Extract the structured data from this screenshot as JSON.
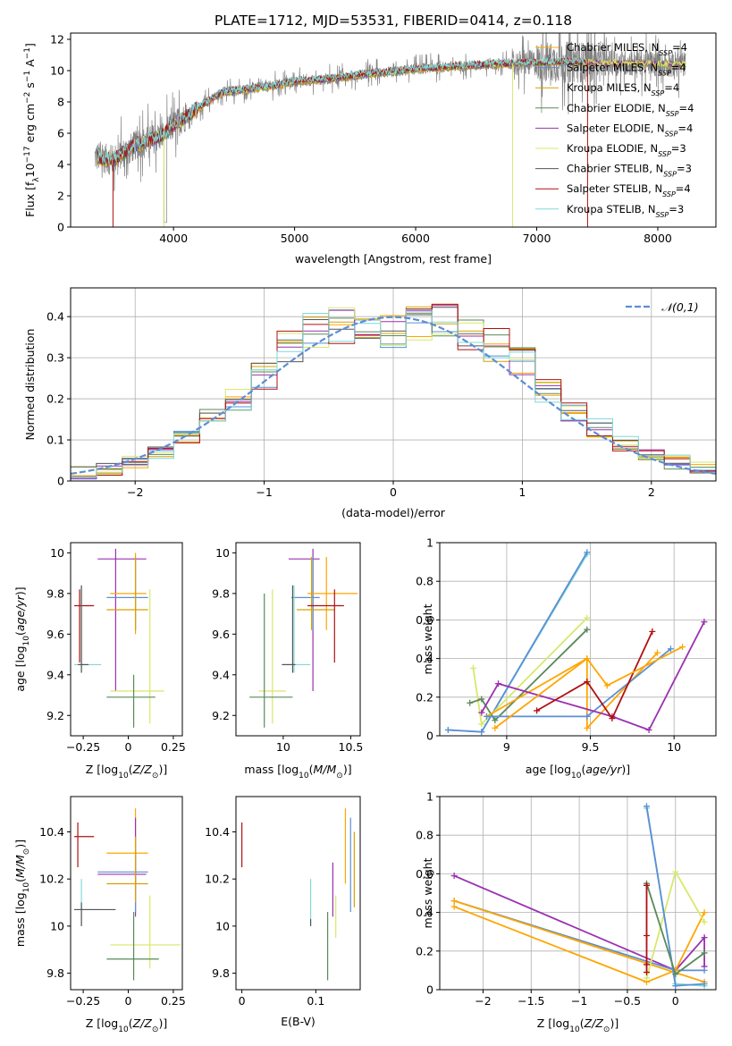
{
  "title": "PLATE=1712, MJD=53531, FIBERID=0414, z=0.118",
  "colors": {
    "chabrier_miles": "#ffa500",
    "salpeter_miles": "#5b8fd4",
    "kroupa_miles": "#d9a000",
    "chabrier_elodie": "#5a8a5a",
    "salpeter_elodie": "#9b30b0",
    "kroupa_elodie": "#d8e86a",
    "chabrier_stelib": "#555555",
    "salpeter_stelib": "#b01010",
    "kroupa_stelib": "#7fd8d8",
    "normal": "#5b8fd4"
  },
  "chart_data": [
    {
      "id": "spectrum",
      "type": "line",
      "xlabel": "wavelength [Angstrom, rest frame]",
      "ylabel": "Flux [f_λ 10^-17 erg cm^-2 s^-1 A^-1]",
      "xlim": [
        3150,
        8480
      ],
      "ylim": [
        0,
        12.4
      ],
      "xticks": [
        4000,
        5000,
        6000,
        7000,
        8000
      ],
      "yticks": [
        0,
        2,
        4,
        6,
        8,
        10,
        12
      ],
      "grid": false,
      "legend_position": "bottom-right",
      "legend": [
        {
          "key": "chabrier_miles",
          "label": "Chabrier MILES, N",
          "sub": "SSP",
          "tail": "=4"
        },
        {
          "key": "salpeter_miles",
          "label": "Salpeter MILES, N",
          "sub": "SSP",
          "tail": "=4"
        },
        {
          "key": "kroupa_miles",
          "label": "Kroupa MILES, N",
          "sub": "SSP",
          "tail": "=4"
        },
        {
          "key": "chabrier_elodie",
          "label": "Chabrier ELODIE, N",
          "sub": "SSP",
          "tail": "=4"
        },
        {
          "key": "salpeter_elodie",
          "label": "Salpeter ELODIE, N",
          "sub": "SSP",
          "tail": "=4"
        },
        {
          "key": "kroupa_elodie",
          "label": "Kroupa ELODIE, N",
          "sub": "SSP",
          "tail": "=3"
        },
        {
          "key": "chabrier_stelib",
          "label": "Chabrier STELIB, N",
          "sub": "SSP",
          "tail": "=3"
        },
        {
          "key": "salpeter_stelib",
          "label": "Salpeter STELIB, N",
          "sub": "SSP",
          "tail": "=4"
        },
        {
          "key": "kroupa_stelib",
          "label": "Kroupa STELIB, N",
          "sub": "SSP",
          "tail": "=3"
        }
      ],
      "data_color": "#808080",
      "continuum": {
        "x": [
          3350,
          3500,
          3700,
          3900,
          4000,
          4200,
          4400,
          4600,
          4800,
          5000,
          5200,
          5400,
          5600,
          5800,
          6000,
          6200,
          6400,
          6600,
          6800,
          7000,
          7200,
          7400,
          7600,
          7800,
          8000,
          8230
        ],
        "y": [
          4.5,
          4.3,
          5.3,
          5.8,
          6.5,
          7.6,
          8.6,
          8.8,
          9.0,
          9.3,
          9.4,
          9.6,
          9.8,
          9.9,
          10.1,
          10.2,
          10.3,
          10.4,
          10.45,
          10.5,
          10.55,
          10.55,
          10.5,
          10.5,
          10.45,
          10.4
        ]
      }
    },
    {
      "id": "residuals",
      "type": "line",
      "xlabel": "(data-model)/error",
      "ylabel": "Normed distribution",
      "xlim": [
        -2.5,
        2.5
      ],
      "ylim": [
        0,
        0.47
      ],
      "xticks": [
        -2,
        -1,
        0,
        1,
        2
      ],
      "yticks": [
        0.0,
        0.1,
        0.2,
        0.3,
        0.4
      ],
      "grid": true,
      "legend_position": "top-right",
      "normal_label": "𝒩(0,1)",
      "bins": [
        -2.5,
        -2.3,
        -2.1,
        -1.9,
        -1.7,
        -1.5,
        -1.3,
        -1.1,
        -0.9,
        -0.7,
        -0.5,
        -0.3,
        -0.1,
        0.1,
        0.3,
        0.5,
        0.7,
        0.9,
        1.1,
        1.3,
        1.5,
        1.7,
        1.9,
        2.1,
        2.3,
        2.5
      ],
      "base_density": [
        0.02,
        0.03,
        0.045,
        0.07,
        0.11,
        0.15,
        0.2,
        0.26,
        0.33,
        0.37,
        0.38,
        0.37,
        0.36,
        0.38,
        0.39,
        0.36,
        0.33,
        0.29,
        0.22,
        0.17,
        0.13,
        0.09,
        0.06,
        0.045,
        0.03
      ]
    },
    {
      "id": "age_vs_Z",
      "type": "scatter",
      "xlabel": "Z [log10(Z/Z⊙)]",
      "ylabel": "age  [log10(age/yr)]",
      "xlim": [
        -0.32,
        0.3
      ],
      "ylim": [
        9.1,
        10.05
      ],
      "xticks": [
        -0.25,
        0.0,
        0.25
      ],
      "yticks": [
        9.2,
        9.4,
        9.6,
        9.8,
        10.0
      ],
      "grid": false,
      "errorbars": [
        {
          "key": "salpeter_elodie",
          "x": -0.07,
          "y": 9.97,
          "xe": [
            -0.17,
            0.1
          ],
          "ye": [
            9.32,
            10.02
          ]
        },
        {
          "key": "chabrier_miles",
          "x": 0.04,
          "y": 9.8,
          "xe": [
            -0.1,
            0.1
          ],
          "ye": [
            9.6,
            10.0
          ]
        },
        {
          "key": "salpeter_miles",
          "x": 0.04,
          "y": 9.78,
          "xe": [
            -0.12,
            0.11
          ],
          "ye": [
            9.62,
            9.98
          ]
        },
        {
          "key": "kroupa_miles",
          "x": 0.04,
          "y": 9.72,
          "xe": [
            -0.12,
            0.11
          ],
          "ye": [
            9.62,
            9.98
          ]
        },
        {
          "key": "salpeter_stelib",
          "x": -0.27,
          "y": 9.74,
          "xe": [
            -0.3,
            -0.19
          ],
          "ye": [
            9.46,
            9.82
          ]
        },
        {
          "key": "kroupa_stelib",
          "x": -0.26,
          "y": 9.45,
          "xe": [
            -0.3,
            -0.15
          ],
          "ye": [
            9.41,
            9.84
          ]
        },
        {
          "key": "chabrier_stelib",
          "x": -0.26,
          "y": 9.45,
          "xe": [
            -0.28,
            -0.22
          ],
          "ye": [
            9.41,
            9.84
          ]
        },
        {
          "key": "kroupa_elodie",
          "x": 0.12,
          "y": 9.32,
          "xe": [
            -0.1,
            0.2
          ],
          "ye": [
            9.16,
            9.82
          ]
        },
        {
          "key": "chabrier_elodie",
          "x": 0.03,
          "y": 9.29,
          "xe": [
            -0.12,
            0.15
          ],
          "ye": [
            9.14,
            9.4
          ]
        }
      ]
    },
    {
      "id": "age_vs_mass",
      "type": "scatter",
      "xlabel": "mass [log10(M/M⊙)]",
      "ylabel": "",
      "xlim": [
        9.65,
        10.57
      ],
      "ylim": [
        9.1,
        10.05
      ],
      "xticks": [
        10.0,
        10.5
      ],
      "yticks": [
        9.2,
        9.4,
        9.6,
        9.8,
        10.0
      ],
      "grid": false,
      "errorbars": [
        {
          "key": "salpeter_elodie",
          "x": 10.22,
          "y": 9.97,
          "xe": [
            10.04,
            10.27
          ],
          "ye": [
            9.32,
            10.02
          ]
        },
        {
          "key": "salpeter_miles",
          "x": 10.22,
          "y": 9.78,
          "xe": [
            10.06,
            10.27
          ],
          "ye": [
            9.62,
            9.98
          ]
        },
        {
          "key": "chabrier_miles",
          "x": 10.32,
          "y": 9.8,
          "xe": [
            10.18,
            10.55
          ],
          "ye": [
            9.62,
            9.98
          ]
        },
        {
          "key": "kroupa_miles",
          "x": 10.21,
          "y": 9.72,
          "xe": [
            10.1,
            10.38
          ],
          "ye": [
            9.62,
            9.98
          ]
        },
        {
          "key": "salpeter_stelib",
          "x": 10.38,
          "y": 9.74,
          "xe": [
            10.18,
            10.45
          ],
          "ye": [
            9.46,
            9.82
          ]
        },
        {
          "key": "kroupa_stelib",
          "x": 10.08,
          "y": 9.45,
          "xe": [
            10.0,
            10.2
          ],
          "ye": [
            9.41,
            9.84
          ]
        },
        {
          "key": "chabrier_stelib",
          "x": 10.07,
          "y": 9.45,
          "xe": [
            9.99,
            10.09
          ],
          "ye": [
            9.41,
            9.84
          ]
        },
        {
          "key": "kroupa_elodie",
          "x": 9.92,
          "y": 9.32,
          "xe": [
            9.82,
            10.02
          ],
          "ye": [
            9.16,
            9.82
          ]
        },
        {
          "key": "chabrier_elodie",
          "x": 9.86,
          "y": 9.29,
          "xe": [
            9.75,
            10.07
          ],
          "ye": [
            9.14,
            9.8
          ]
        }
      ]
    },
    {
      "id": "weight_vs_age",
      "type": "line",
      "xlabel": "age  [log10(age/yr)]",
      "ylabel": "mass weight",
      "xlim": [
        8.6,
        10.25
      ],
      "ylim": [
        0,
        1.0
      ],
      "xticks": [
        9.0,
        9.5,
        10.0
      ],
      "yticks": [
        0.0,
        0.2,
        0.4,
        0.6,
        0.8,
        1.0
      ],
      "grid": true,
      "series": [
        {
          "key": "kroupa_stelib",
          "x": [
            8.65,
            8.85,
            9.48
          ],
          "y": [
            0.03,
            0.02,
            0.94
          ]
        },
        {
          "key": "salpeter_miles",
          "x": [
            8.65,
            8.85,
            9.48
          ],
          "y": [
            0.03,
            0.02,
            0.95
          ]
        },
        {
          "key": "kroupa_elodie",
          "x": [
            8.8,
            8.85,
            9.48
          ],
          "y": [
            0.35,
            0.06,
            0.61
          ]
        },
        {
          "key": "chabrier_elodie",
          "x": [
            8.78,
            8.85,
            8.93,
            9.48
          ],
          "y": [
            0.17,
            0.19,
            0.08,
            0.55
          ]
        },
        {
          "key": "chabrier_miles",
          "x": [
            8.88,
            9.48,
            9.48,
            9.9
          ],
          "y": [
            0.1,
            0.4,
            0.04,
            0.43
          ]
        },
        {
          "key": "salpeter_miles",
          "x": [
            8.88,
            9.48,
            9.98
          ],
          "y": [
            0.1,
            0.1,
            0.45
          ]
        },
        {
          "key": "salpeter_elodie",
          "x": [
            8.85,
            8.95,
            9.63,
            9.85,
            10.18
          ],
          "y": [
            0.12,
            0.27,
            0.1,
            0.03,
            0.59
          ]
        },
        {
          "key": "salpeter_stelib",
          "x": [
            9.18,
            9.48,
            9.63,
            9.87
          ],
          "y": [
            0.13,
            0.28,
            0.09,
            0.54
          ]
        },
        {
          "key": "chabrier_miles",
          "x": [
            8.93,
            9.48,
            9.6,
            10.05
          ],
          "y": [
            0.04,
            0.4,
            0.26,
            0.46
          ]
        }
      ]
    },
    {
      "id": "mass_vs_Z",
      "type": "scatter",
      "xlabel": "Z [log10(Z/Z⊙)]",
      "ylabel": "mass [log10(M/M⊙)]",
      "xlim": [
        -0.32,
        0.3
      ],
      "ylim": [
        9.73,
        10.55
      ],
      "xticks": [
        -0.25,
        0.0,
        0.25
      ],
      "yticks": [
        9.8,
        10.0,
        10.2,
        10.4
      ],
      "grid": false,
      "errorbars": [
        {
          "key": "salpeter_stelib",
          "x": -0.28,
          "y": 10.38,
          "xe": [
            -0.3,
            -0.19
          ],
          "ye": [
            10.25,
            10.44
          ]
        },
        {
          "key": "chabrier_miles",
          "x": 0.04,
          "y": 10.31,
          "xe": [
            -0.12,
            0.11
          ],
          "ye": [
            10.18,
            10.5
          ]
        },
        {
          "key": "salpeter_elodie",
          "x": 0.04,
          "y": 10.22,
          "xe": [
            -0.17,
            0.1
          ],
          "ye": [
            10.04,
            10.46
          ]
        },
        {
          "key": "salpeter_miles",
          "x": 0.04,
          "y": 10.23,
          "xe": [
            -0.17,
            0.11
          ],
          "ye": [
            10.06,
            10.3
          ]
        },
        {
          "key": "kroupa_miles",
          "x": 0.04,
          "y": 10.18,
          "xe": [
            -0.12,
            0.11
          ],
          "ye": [
            10.1,
            10.38
          ]
        },
        {
          "key": "kroupa_stelib",
          "x": -0.26,
          "y": 10.07,
          "xe": [
            -0.3,
            -0.15
          ],
          "ye": [
            10.0,
            10.2
          ]
        },
        {
          "key": "chabrier_stelib",
          "x": -0.26,
          "y": 10.07,
          "xe": [
            -0.3,
            -0.07
          ],
          "ye": [
            10.0,
            10.1
          ]
        },
        {
          "key": "kroupa_elodie",
          "x": 0.12,
          "y": 9.92,
          "xe": [
            -0.1,
            0.29
          ],
          "ye": [
            9.82,
            10.13
          ]
        },
        {
          "key": "chabrier_elodie",
          "x": 0.03,
          "y": 9.86,
          "xe": [
            -0.12,
            0.17
          ],
          "ye": [
            9.77,
            10.06
          ]
        }
      ]
    },
    {
      "id": "mass_vs_ebv",
      "type": "scatter",
      "xlabel": "E(B-V)",
      "ylabel": "",
      "xlim": [
        -0.008,
        0.16
      ],
      "ylim": [
        9.73,
        10.55
      ],
      "xticks": [
        0.0,
        0.1
      ],
      "yticks": [
        9.8,
        10.0,
        10.2,
        10.4
      ],
      "grid": false,
      "errorbars": [
        {
          "key": "salpeter_stelib",
          "x": 0.0,
          "y": 10.38,
          "ye": [
            10.25,
            10.44
          ]
        },
        {
          "key": "chabrier_miles",
          "x": 0.14,
          "y": 10.31,
          "ye": [
            10.18,
            10.5
          ]
        },
        {
          "key": "salpeter_miles",
          "x": 0.147,
          "y": 10.23,
          "ye": [
            10.06,
            10.46
          ]
        },
        {
          "key": "kroupa_miles",
          "x": 0.152,
          "y": 10.18,
          "ye": [
            10.08,
            10.4
          ]
        },
        {
          "key": "salpeter_elodie",
          "x": 0.123,
          "y": 10.22,
          "ye": [
            10.04,
            10.27
          ]
        },
        {
          "key": "kroupa_elodie",
          "x": 0.127,
          "y": 9.92,
          "ye": [
            9.95,
            10.13
          ]
        },
        {
          "key": "kroupa_stelib",
          "x": 0.093,
          "y": 10.07,
          "ye": [
            10.0,
            10.2
          ]
        },
        {
          "key": "chabrier_stelib",
          "x": 0.093,
          "y": 10.07,
          "ye": [
            10.0,
            10.03
          ]
        },
        {
          "key": "chabrier_elodie",
          "x": 0.116,
          "y": 9.86,
          "ye": [
            9.77,
            10.06
          ]
        }
      ]
    },
    {
      "id": "weight_vs_Z",
      "type": "line",
      "xlabel": "Z [log10(Z/Z⊙)]",
      "ylabel": "mass weight",
      "xlim": [
        -2.45,
        0.42
      ],
      "ylim": [
        0,
        1.0
      ],
      "xticks": [
        -2.0,
        -1.5,
        -1.0,
        -0.5,
        0.0
      ],
      "yticks": [
        0.0,
        0.2,
        0.4,
        0.6,
        0.8,
        1.0
      ],
      "grid": true,
      "series": [
        {
          "key": "salpeter_elodie",
          "x": [
            -2.3,
            0.0,
            0.3,
            0.3
          ],
          "y": [
            0.59,
            0.1,
            0.27,
            0.12
          ]
        },
        {
          "key": "salpeter_miles",
          "x": [
            -2.3,
            0.0,
            0.3
          ],
          "y": [
            0.46,
            0.1,
            0.1
          ]
        },
        {
          "key": "chabrier_miles",
          "x": [
            -2.3,
            -0.3,
            0.0,
            0.3
          ],
          "y": [
            0.43,
            0.04,
            0.1,
            0.4
          ]
        },
        {
          "key": "chabrier_miles",
          "x": [
            -2.3,
            0.3
          ],
          "y": [
            0.46,
            0.04
          ]
        },
        {
          "key": "kroupa_elodie",
          "x": [
            -0.3,
            0.0,
            0.3
          ],
          "y": [
            0.06,
            0.61,
            0.35
          ]
        },
        {
          "key": "kroupa_stelib",
          "x": [
            -0.3,
            0.0,
            0.3
          ],
          "y": [
            0.94,
            0.03,
            0.02
          ]
        },
        {
          "key": "salpeter_miles",
          "x": [
            -0.3,
            0.0,
            0.3
          ],
          "y": [
            0.95,
            0.02,
            0.03
          ]
        },
        {
          "key": "chabrier_elodie",
          "x": [
            -0.3,
            0.0,
            0.3
          ],
          "y": [
            0.55,
            0.08,
            0.19
          ]
        },
        {
          "key": "salpeter_stelib",
          "x": [
            -0.3,
            -0.3,
            -0.3,
            -0.3,
            -0.3
          ],
          "y": [
            0.54,
            0.28,
            0.13,
            0.09,
            0.54
          ]
        }
      ]
    }
  ]
}
